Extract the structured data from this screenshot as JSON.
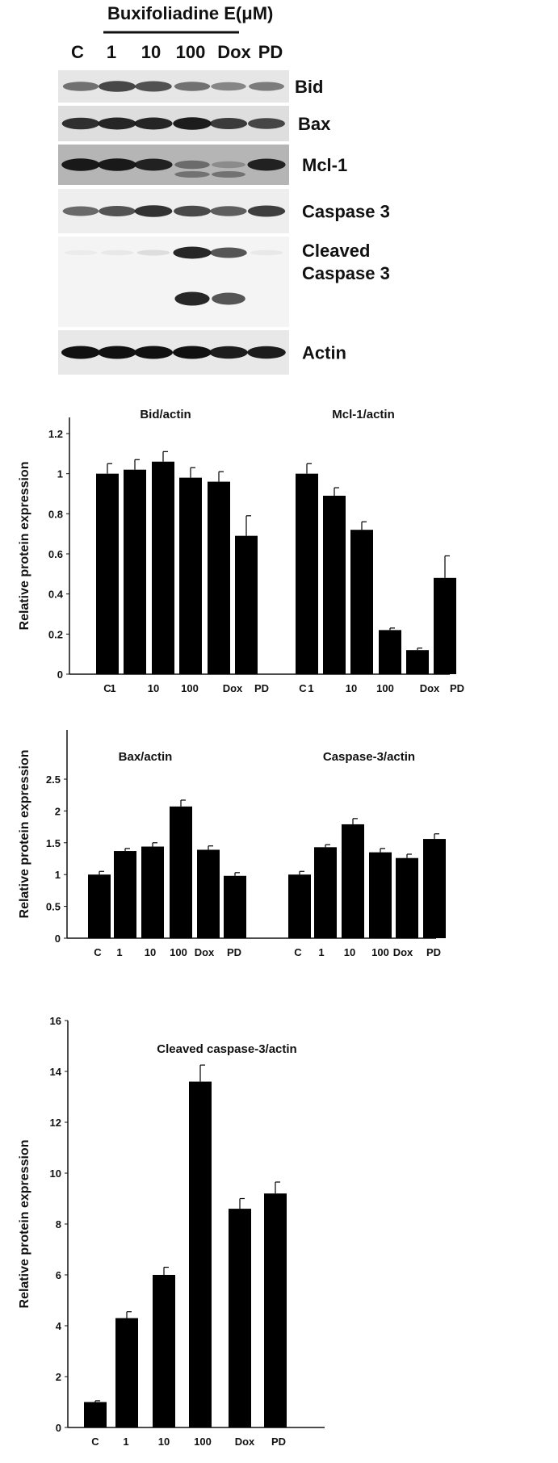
{
  "blot": {
    "treatment_label": "Buxifoliadine E(μM)",
    "lanes": [
      "C",
      "1",
      "10",
      "100",
      "Dox",
      "PD"
    ],
    "panels": [
      {
        "label": "Bid",
        "bands": [
          0.55,
          0.75,
          0.7,
          0.55,
          0.45,
          0.5
        ]
      },
      {
        "label": "Bax",
        "bands": [
          0.85,
          0.9,
          0.9,
          0.95,
          0.8,
          0.75
        ]
      },
      {
        "label": "Mcl-1",
        "bands": [
          0.95,
          0.95,
          0.9,
          0.45,
          0.25,
          0.9
        ]
      },
      {
        "label": "Caspase 3",
        "bands": [
          0.6,
          0.7,
          0.85,
          0.75,
          0.65,
          0.8
        ]
      },
      {
        "label": "Cleaved\nCaspase 3",
        "bands": [
          0.02,
          0.05,
          0.1,
          0.9,
          0.7,
          0.05
        ]
      },
      {
        "label": "Actin",
        "bands": [
          1.0,
          1.0,
          1.0,
          1.0,
          0.95,
          0.95
        ]
      }
    ]
  },
  "chart_data": [
    {
      "type": "bar",
      "title": "Bid/actin",
      "ylabel": "Relative protein expression",
      "categories": [
        "C",
        "1",
        "10",
        "100",
        "Dox",
        "PD"
      ],
      "values": [
        1.0,
        1.02,
        1.06,
        0.98,
        0.96,
        0.69
      ],
      "errors": [
        0.05,
        0.05,
        0.05,
        0.05,
        0.05,
        0.1
      ],
      "ylim": [
        0,
        1.2
      ],
      "yticks": [
        "0",
        "0.2",
        "0.4",
        "0.6",
        "0.8",
        "1",
        "1.2"
      ],
      "shared_axis_group": 1
    },
    {
      "type": "bar",
      "title": "Mcl-1/actin",
      "ylabel": "",
      "categories": [
        "C",
        "1",
        "10",
        "100",
        "Dox",
        "PD"
      ],
      "values": [
        1.0,
        0.89,
        0.72,
        0.22,
        0.12,
        0.48
      ],
      "errors": [
        0.05,
        0.04,
        0.04,
        0.01,
        0.01,
        0.11
      ],
      "ylim": [
        0,
        1.2
      ],
      "shared_axis_group": 1
    },
    {
      "type": "bar",
      "title": "Bax/actin",
      "ylabel": "Relative protein expression",
      "categories": [
        "C",
        "1",
        "10",
        "100",
        "Dox",
        "PD"
      ],
      "values": [
        1.0,
        1.37,
        1.44,
        2.07,
        1.39,
        0.98
      ],
      "errors": [
        0.05,
        0.04,
        0.06,
        0.1,
        0.06,
        0.05
      ],
      "ylim": [
        0,
        2.5
      ],
      "yticks": [
        "0",
        "0.5",
        "1",
        "1.5",
        "2",
        "2.5"
      ],
      "shared_axis_group": 2
    },
    {
      "type": "bar",
      "title": "Caspase-3/actin",
      "ylabel": "",
      "categories": [
        "C",
        "1",
        "10",
        "100",
        "Dox",
        "PD"
      ],
      "values": [
        1.0,
        1.43,
        1.79,
        1.35,
        1.26,
        1.56
      ],
      "errors": [
        0.05,
        0.04,
        0.09,
        0.06,
        0.06,
        0.08
      ],
      "ylim": [
        0,
        2.5
      ],
      "shared_axis_group": 2
    },
    {
      "type": "bar",
      "title": "Cleaved caspase-3/actin",
      "ylabel": "Relative protein expression",
      "categories": [
        "C",
        "1",
        "10",
        "100",
        "Dox",
        "PD"
      ],
      "values": [
        1.0,
        4.3,
        6.0,
        13.6,
        8.6,
        9.2
      ],
      "errors": [
        0.05,
        0.25,
        0.3,
        0.65,
        0.4,
        0.45
      ],
      "ylim": [
        0,
        16
      ],
      "yticks": [
        "0",
        "2",
        "4",
        "6",
        "8",
        "10",
        "12",
        "14",
        "16"
      ],
      "shared_axis_group": 3
    }
  ]
}
